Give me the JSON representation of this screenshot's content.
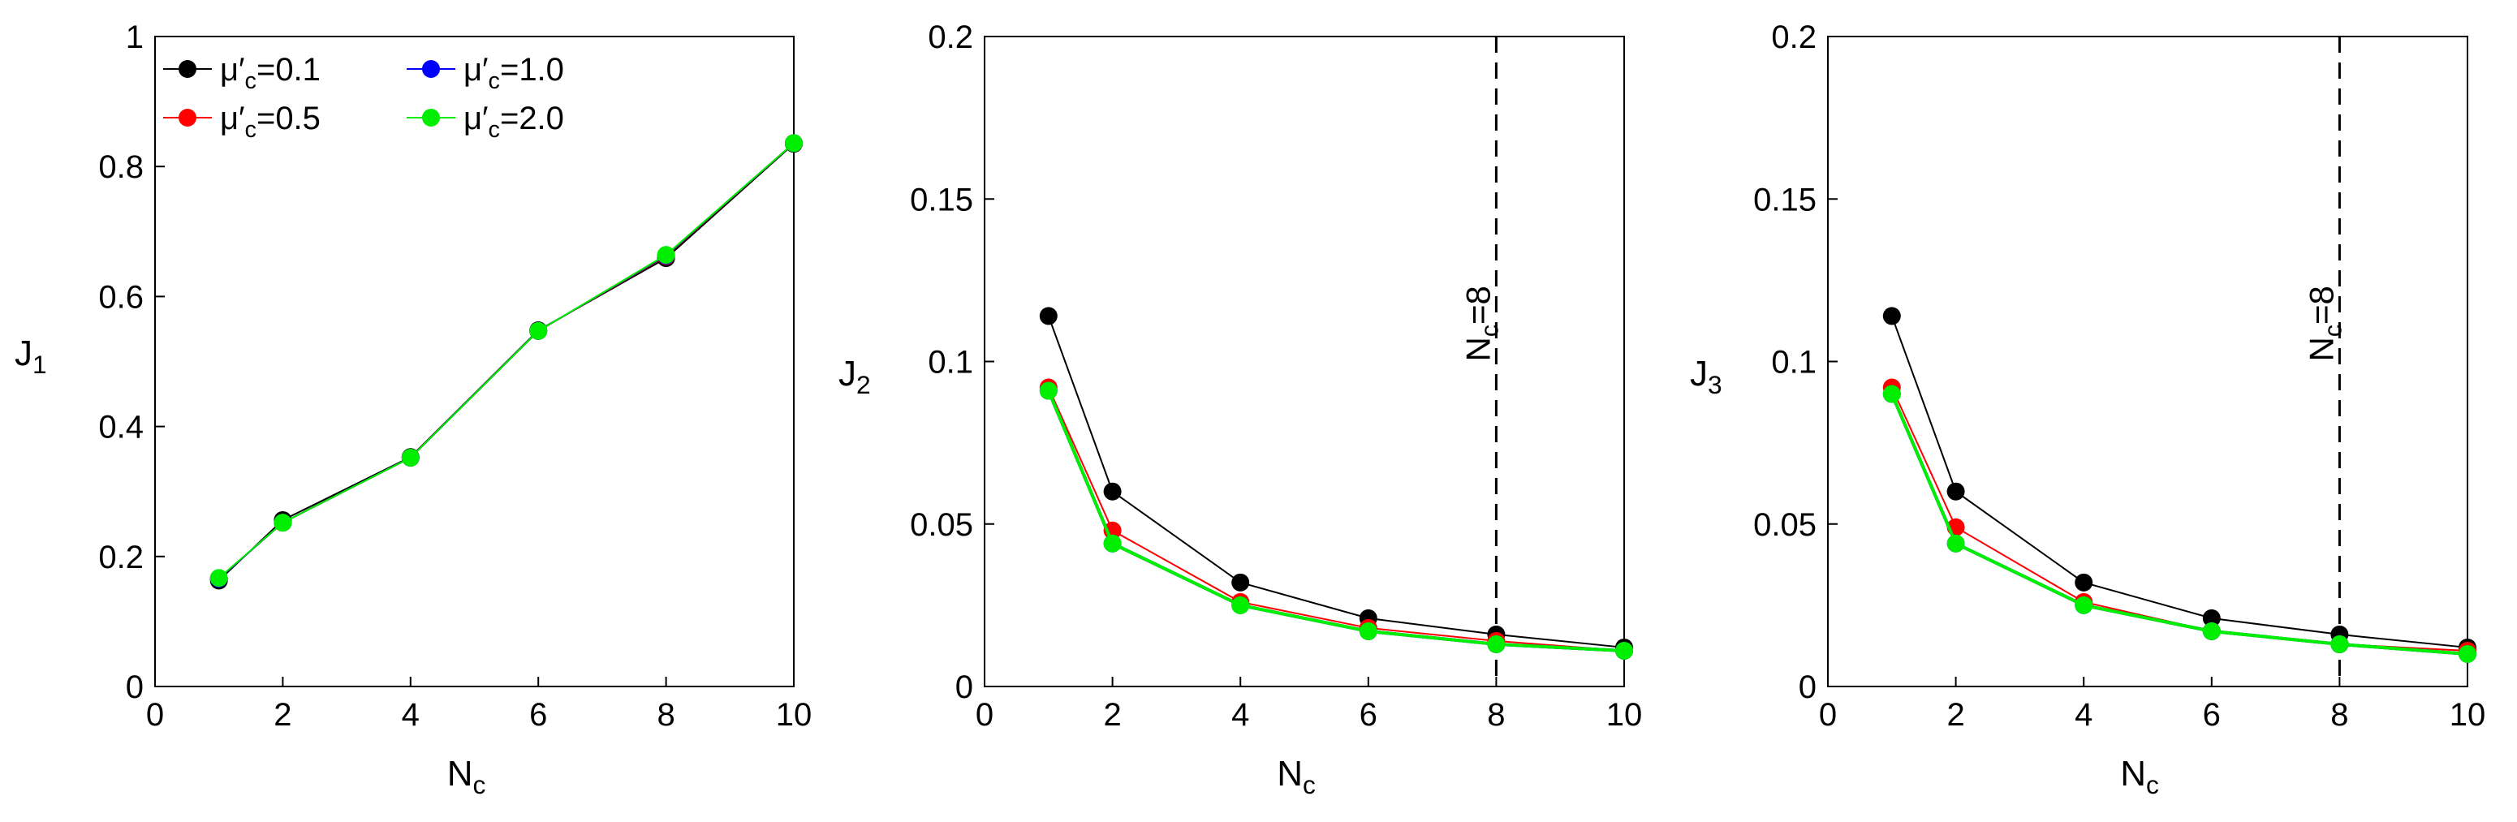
{
  "chart_data": [
    {
      "type": "line",
      "ylabel": "J",
      "ylabel_sub": "1",
      "xlabel": "N",
      "xlabel_sub": "c",
      "xlim": [
        0,
        10
      ],
      "ylim": [
        0,
        1
      ],
      "xticks": [
        0,
        2,
        4,
        6,
        8,
        10
      ],
      "yticks": [
        0,
        0.2,
        0.4,
        0.6,
        0.8,
        1
      ],
      "ytick_labels": [
        "0",
        "0.2",
        "0.4",
        "0.6",
        "0.8",
        "1"
      ],
      "x": [
        1,
        2,
        4,
        6,
        8,
        10
      ],
      "series": [
        {
          "name": "μ′c=0.1",
          "color": "#000000",
          "values": [
            0.163,
            0.256,
            0.353,
            0.548,
            0.659,
            0.835
          ]
        },
        {
          "name": "μ′c=0.5",
          "color": "#ff0000",
          "values": [
            0.166,
            0.252,
            0.352,
            0.547,
            0.662,
            0.836
          ]
        },
        {
          "name": "μ′c=1.0",
          "color": "#0000ff",
          "values": [
            0.166,
            0.252,
            0.352,
            0.547,
            0.663,
            0.836
          ]
        },
        {
          "name": "μ′c=2.0",
          "color": "#00ee00",
          "values": [
            0.167,
            0.252,
            0.352,
            0.547,
            0.664,
            0.836
          ]
        }
      ],
      "legend": {
        "placement": "top-left",
        "entries": [
          {
            "prefix": "μ′",
            "sub": "c",
            "suffix": "=0.1",
            "color": "#000000"
          },
          {
            "prefix": "μ′",
            "sub": "c",
            "suffix": "=1.0",
            "color": "#0000ff"
          },
          {
            "prefix": "μ′",
            "sub": "c",
            "suffix": "=0.5",
            "color": "#ff0000"
          },
          {
            "prefix": "μ′",
            "sub": "c",
            "suffix": "=2.0",
            "color": "#00ee00"
          }
        ]
      }
    },
    {
      "type": "line",
      "ylabel": "J",
      "ylabel_sub": "2",
      "xlabel": "N",
      "xlabel_sub": "c",
      "xlim": [
        0,
        10
      ],
      "ylim": [
        0,
        0.2
      ],
      "xticks": [
        0,
        2,
        4,
        6,
        8,
        10
      ],
      "yticks": [
        0,
        0.05,
        0.1,
        0.15,
        0.2
      ],
      "ytick_labels": [
        "0",
        "0.05",
        "0.1",
        "0.15",
        "0.2"
      ],
      "x": [
        1,
        2,
        4,
        6,
        8,
        10
      ],
      "series": [
        {
          "name": "μ′c=0.1",
          "color": "#000000",
          "values": [
            0.114,
            0.06,
            0.032,
            0.021,
            0.016,
            0.012
          ]
        },
        {
          "name": "μ′c=0.5",
          "color": "#ff0000",
          "values": [
            0.092,
            0.048,
            0.026,
            0.018,
            0.014,
            0.011
          ]
        },
        {
          "name": "μ′c=1.0",
          "color": "#0000ff",
          "values": [
            0.091,
            0.044,
            0.025,
            0.017,
            0.013,
            0.011
          ]
        },
        {
          "name": "μ′c=2.0",
          "color": "#00ee00",
          "values": [
            0.091,
            0.044,
            0.025,
            0.017,
            0.013,
            0.011
          ]
        }
      ],
      "vline": {
        "x": 8,
        "label": "N",
        "label_sub": "c",
        "label_suffix": "=8"
      }
    },
    {
      "type": "line",
      "ylabel": "J",
      "ylabel_sub": "3",
      "xlabel": "N",
      "xlabel_sub": "c",
      "xlim": [
        0,
        10
      ],
      "ylim": [
        0,
        0.2
      ],
      "xticks": [
        0,
        2,
        4,
        6,
        8,
        10
      ],
      "yticks": [
        0,
        0.05,
        0.1,
        0.15,
        0.2
      ],
      "ytick_labels": [
        "0",
        "0.05",
        "0.1",
        "0.15",
        "0.2"
      ],
      "x": [
        1,
        2,
        4,
        6,
        8,
        10
      ],
      "series": [
        {
          "name": "μ′c=0.1",
          "color": "#000000",
          "values": [
            0.114,
            0.06,
            0.032,
            0.021,
            0.016,
            0.012
          ]
        },
        {
          "name": "μ′c=0.5",
          "color": "#ff0000",
          "values": [
            0.092,
            0.049,
            0.026,
            0.017,
            0.013,
            0.011
          ]
        },
        {
          "name": "μ′c=1.0",
          "color": "#0000ff",
          "values": [
            0.09,
            0.044,
            0.025,
            0.017,
            0.013,
            0.01
          ]
        },
        {
          "name": "μ′c=2.0",
          "color": "#00ee00",
          "values": [
            0.09,
            0.044,
            0.025,
            0.017,
            0.013,
            0.01
          ]
        }
      ],
      "vline": {
        "x": 8,
        "label": "N",
        "label_sub": "c",
        "label_suffix": "=8"
      }
    }
  ]
}
